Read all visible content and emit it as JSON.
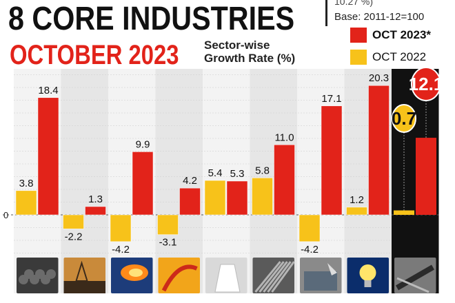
{
  "header": {
    "title": "8 CORE INDUSTRIES",
    "subtitle": "OCTOBER 2023",
    "caption_line1": "Sector-wise",
    "caption_line2": "Growth Rate (%)",
    "cut_note": "10.27 %)",
    "base_note": "Base: 2011-12=100"
  },
  "legend": [
    {
      "label": "OCT 2023*",
      "color": "#e2231a"
    },
    {
      "label": "OCT 2022",
      "color": "#f7c21a"
    }
  ],
  "chart_data": {
    "type": "bar",
    "title": "8 CORE INDUSTRIES OCTOBER 2023",
    "ylabel": "",
    "zero_label": "0",
    "series": [
      {
        "name": "OCT 2022",
        "color": "#f7c21a",
        "values": [
          3.8,
          -2.2,
          -4.2,
          -3.1,
          5.4,
          5.8,
          -4.2,
          1.2,
          0.7
        ]
      },
      {
        "name": "OCT 2023*",
        "color": "#e2231a",
        "values": [
          18.4,
          1.3,
          9.9,
          4.2,
          5.3,
          11.0,
          17.1,
          20.3,
          12.1
        ]
      }
    ],
    "value_labels": {
      "OCT 2022": [
        "3.8",
        "-2.2",
        "-4.2",
        "-3.1",
        "5.4",
        "5.8",
        "-4.2",
        "1.2",
        "0.7"
      ],
      "OCT 2023*": [
        "18.4",
        "1.3",
        "9.9",
        "4.2",
        "5.3",
        "11.0",
        "17.1",
        "20.3",
        "12.1"
      ]
    },
    "highlight_index": 8,
    "category_icons": [
      "coal-icon",
      "crude-oil-icon",
      "natural-gas-icon",
      "refinery-products-icon",
      "fertilizers-icon",
      "steel-icon",
      "cement-icon",
      "electricity-icon",
      "overall-index-icon"
    ]
  }
}
